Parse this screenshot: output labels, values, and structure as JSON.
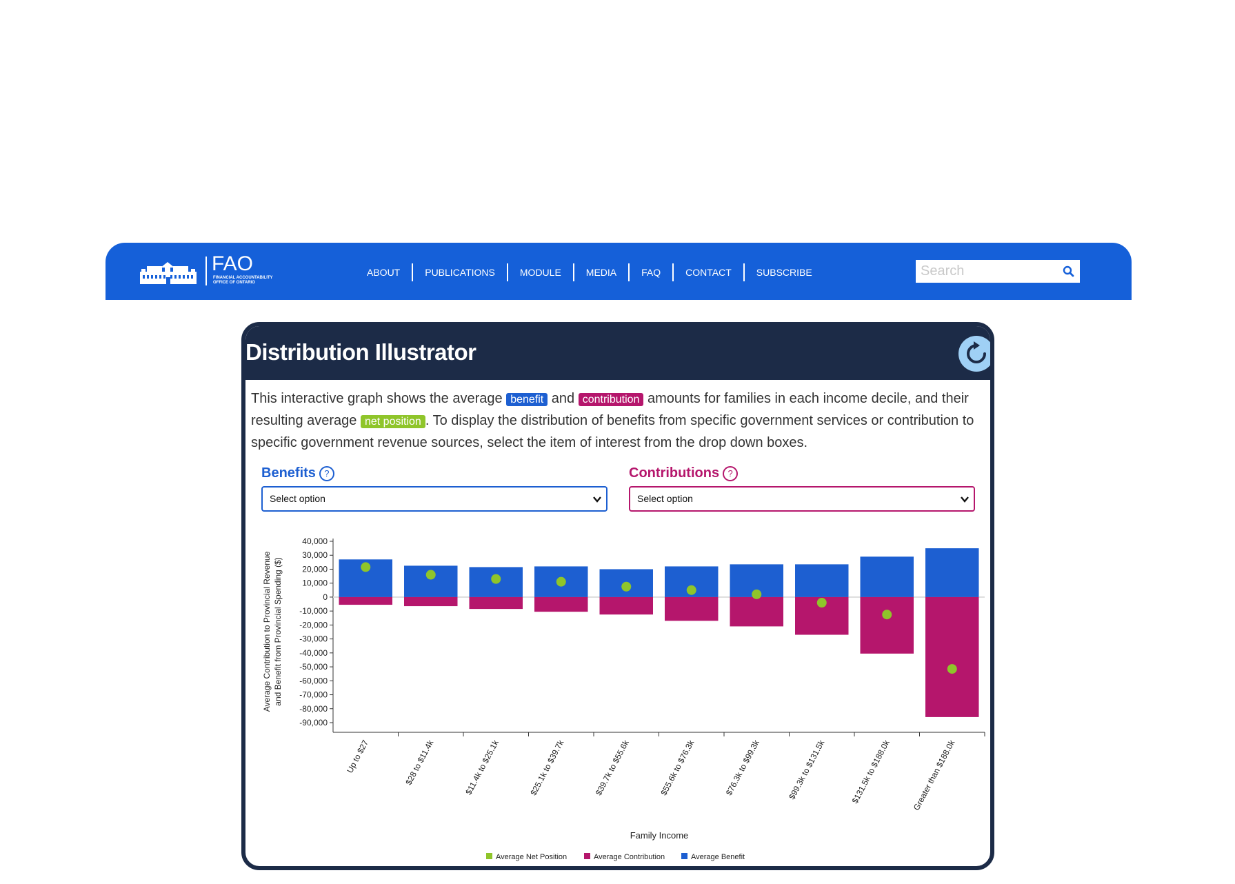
{
  "nav": {
    "brand": "FAO",
    "brand_sub": "Financial Accountability Office of Ontario",
    "items": [
      "ABOUT",
      "PUBLICATIONS",
      "MODULE",
      "MEDIA",
      "FAQ",
      "CONTACT",
      "SUBSCRIBE"
    ],
    "search_placeholder": "Search"
  },
  "card": {
    "title": "Distribution Illustrator",
    "desc_1": "This interactive graph shows the average ",
    "tag_benefit": "benefit",
    "desc_2": " and ",
    "tag_contribution": "contribution",
    "desc_3": " amounts for families in each income decile, and their resulting average ",
    "tag_net": "net position",
    "desc_4": ". To display the distribution of benefits from specific government services or contribution to specific government revenue sources, select the item of interest from the drop down boxes.",
    "benefits_label": "Benefits",
    "contributions_label": "Contributions",
    "help_glyph": "?",
    "benefits_select": "Select option",
    "contributions_select": "Select option"
  },
  "colors": {
    "nav": "#1560d9",
    "card_head": "#1c2b47",
    "benefit": "#1d5fd1",
    "contribution": "#b5166c",
    "net": "#8fc52a"
  },
  "chart_data": {
    "type": "bar",
    "xlabel": "Family Income",
    "ylabel_line1": "Average Contribution to Provincial Revenue",
    "ylabel_line2": "and Benefit from Provincial Spending ($)",
    "ylim": [
      -90000,
      40000
    ],
    "yticks": [
      40000,
      30000,
      20000,
      10000,
      0,
      -10000,
      -20000,
      -30000,
      -40000,
      -50000,
      -60000,
      -70000,
      -80000,
      -90000
    ],
    "ytick_labels": [
      "40,000",
      "30,000",
      "20,000",
      "10,000",
      "0",
      "-10,000",
      "-20,000",
      "-30,000",
      "-40,000",
      "-50,000",
      "-60,000",
      "-70,000",
      "-80,000",
      "-90,000"
    ],
    "categories": [
      "Up to $27",
      "$28 to $11.4k",
      "$11.4k to $25.1k",
      "$25.1k to $39.7k",
      "$39.7k to $55.6k",
      "$55.6k to $76.3k",
      "$76.3k to $99.3k",
      "$99.3k to $131.5k",
      "$131.5k to $188.0k",
      "Greater than $188.0k"
    ],
    "series": [
      {
        "name": "Average Benefit",
        "values": [
          27000,
          22500,
          21500,
          22000,
          20000,
          22000,
          23500,
          23500,
          29000,
          35000
        ]
      },
      {
        "name": "Average Contribution",
        "values": [
          -5500,
          -6500,
          -8500,
          -10500,
          -12500,
          -17000,
          -21000,
          -27000,
          -40500,
          -86000
        ]
      },
      {
        "name": "Average Net Position",
        "values": [
          21500,
          16000,
          13000,
          11000,
          7500,
          5000,
          2000,
          -4000,
          -12500,
          -51500
        ]
      }
    ],
    "legend": [
      "Average Net Position",
      "Average Contribution",
      "Average Benefit"
    ],
    "legend_position": "bottom"
  }
}
